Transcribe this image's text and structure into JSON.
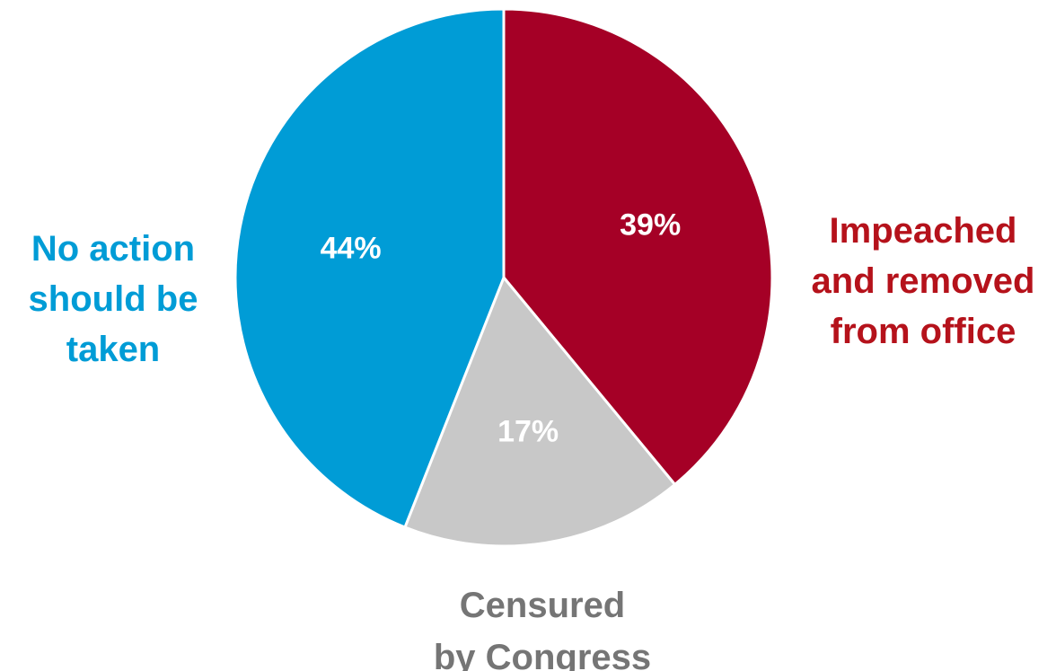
{
  "chart_data": {
    "type": "pie",
    "title": "",
    "slices": [
      {
        "name": "Impeached and removed from office",
        "label_lines": [
          "Impeached",
          "and removed",
          "from office"
        ],
        "value": 39,
        "value_label": "39%",
        "color": "#A50026",
        "label_color": "#B5121B"
      },
      {
        "name": "Censured by Congress",
        "label_lines": [
          "Censured",
          "by Congress"
        ],
        "value": 17,
        "value_label": "17%",
        "color": "#C8C8C8",
        "label_color": "#757575"
      },
      {
        "name": "No action should be taken",
        "label_lines": [
          "No action",
          "should be",
          "taken"
        ],
        "value": 44,
        "value_label": "44%",
        "color": "#009CD6",
        "label_color": "#009CD6"
      }
    ],
    "start_angle": "12 o'clock",
    "direction": "clockwise",
    "legend": "none"
  }
}
